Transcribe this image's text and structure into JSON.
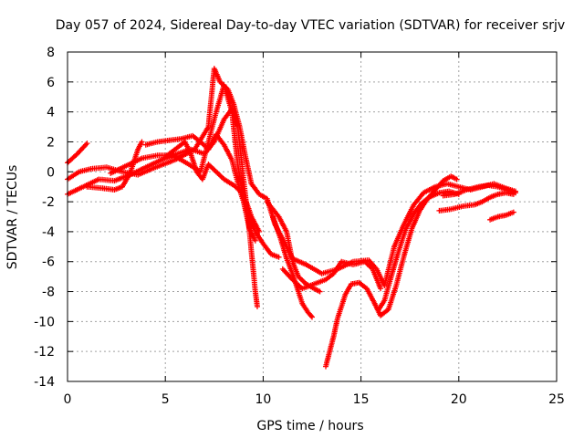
{
  "chart_data": {
    "type": "scatter",
    "title": "Day 057 of 2024, Sidereal Day-to-day VTEC variation (SDTVAR) for receiver srjv",
    "xlabel": "GPS time / hours",
    "ylabel": "SDTVAR / TECUs",
    "xlim": [
      0,
      25
    ],
    "ylim": [
      -14,
      8
    ],
    "xticks": [
      0,
      5,
      10,
      15,
      20,
      25
    ],
    "yticks": [
      -14,
      -12,
      -10,
      -8,
      -6,
      -4,
      -2,
      0,
      2,
      4,
      6,
      8
    ],
    "grid": true,
    "marker": "+",
    "color": "#ff0000",
    "series": [
      {
        "points": [
          [
            0.0,
            0.6
          ],
          [
            0.5,
            1.2
          ],
          [
            1.0,
            1.9
          ]
        ]
      },
      {
        "points": [
          [
            0.0,
            -1.5
          ],
          [
            0.8,
            -1.0
          ],
          [
            1.6,
            -0.5
          ],
          [
            2.4,
            -0.6
          ],
          [
            3.2,
            -0.2
          ],
          [
            4.0,
            0.3
          ],
          [
            4.8,
            0.8
          ],
          [
            5.6,
            1.2
          ],
          [
            6.3,
            1.5
          ],
          [
            7.0,
            1.2
          ],
          [
            7.5,
            2.0
          ],
          [
            8.0,
            3.5
          ],
          [
            8.4,
            4.2
          ],
          [
            8.7,
            3.0
          ],
          [
            9.0,
            -0.5
          ],
          [
            9.3,
            -4.0
          ],
          [
            9.6,
            -8.0
          ],
          [
            9.7,
            -9.0
          ]
        ]
      },
      {
        "points": [
          [
            0.0,
            -0.5
          ],
          [
            0.6,
            0.0
          ],
          [
            1.2,
            0.2
          ],
          [
            2.0,
            0.3
          ],
          [
            2.8,
            0.0
          ],
          [
            3.6,
            -0.2
          ],
          [
            4.5,
            0.3
          ],
          [
            5.5,
            0.8
          ],
          [
            6.5,
            1.5
          ],
          [
            7.2,
            3.0
          ],
          [
            7.5,
            6.9
          ],
          [
            7.8,
            6.0
          ],
          [
            8.2,
            5.5
          ],
          [
            8.5,
            4.5
          ],
          [
            8.8,
            3.0
          ],
          [
            9.1,
            1.0
          ],
          [
            9.4,
            -0.8
          ],
          [
            9.8,
            -1.5
          ],
          [
            10.2,
            -1.8
          ],
          [
            10.6,
            -3.5
          ],
          [
            11.0,
            -4.5
          ],
          [
            11.5,
            -5.8
          ],
          [
            12.2,
            -6.2
          ],
          [
            13.0,
            -6.8
          ],
          [
            13.8,
            -6.5
          ],
          [
            14.6,
            -6.0
          ],
          [
            15.4,
            -5.9
          ],
          [
            15.8,
            -6.5
          ],
          [
            16.2,
            -7.6
          ],
          [
            16.7,
            -5.0
          ],
          [
            17.2,
            -3.5
          ],
          [
            17.7,
            -2.2
          ],
          [
            18.2,
            -1.4
          ],
          [
            18.8,
            -1.0
          ],
          [
            19.4,
            -0.8
          ],
          [
            20.0,
            -1.0
          ],
          [
            20.6,
            -1.2
          ],
          [
            21.2,
            -1.0
          ],
          [
            21.8,
            -0.8
          ],
          [
            22.4,
            -1.1
          ],
          [
            22.9,
            -1.3
          ]
        ]
      },
      {
        "points": [
          [
            1.0,
            -1.0
          ],
          [
            1.8,
            -1.1
          ],
          [
            2.4,
            -1.2
          ],
          [
            2.8,
            -1.0
          ],
          [
            3.2,
            -0.1
          ],
          [
            3.6,
            1.5
          ],
          [
            3.8,
            2.0
          ]
        ]
      },
      {
        "points": [
          [
            2.2,
            -0.1
          ],
          [
            3.0,
            0.4
          ],
          [
            3.8,
            0.9
          ],
          [
            4.6,
            1.1
          ],
          [
            5.4,
            1.1
          ],
          [
            6.2,
            0.5
          ],
          [
            6.8,
            0.0
          ],
          [
            7.2,
            2.0
          ],
          [
            7.6,
            4.0
          ],
          [
            8.0,
            5.8
          ],
          [
            8.4,
            4.0
          ],
          [
            8.7,
            0.5
          ],
          [
            9.0,
            -2.0
          ],
          [
            9.3,
            -3.8
          ],
          [
            9.6,
            -4.6
          ]
        ]
      },
      {
        "points": [
          [
            4.0,
            1.8
          ],
          [
            4.6,
            2.0
          ],
          [
            5.2,
            2.1
          ],
          [
            5.8,
            2.2
          ],
          [
            6.4,
            2.4
          ],
          [
            6.8,
            2.0
          ],
          [
            7.2,
            1.5
          ],
          [
            7.6,
            2.5
          ],
          [
            8.0,
            1.8
          ],
          [
            8.4,
            0.8
          ],
          [
            8.8,
            -1.2
          ],
          [
            9.2,
            -2.8
          ],
          [
            9.6,
            -4.0
          ],
          [
            10.0,
            -4.8
          ],
          [
            10.4,
            -5.5
          ],
          [
            10.8,
            -5.7
          ]
        ]
      },
      {
        "points": [
          [
            5.0,
            1.0
          ],
          [
            5.5,
            1.5
          ],
          [
            6.0,
            2.0
          ],
          [
            6.3,
            1.2
          ],
          [
            6.6,
            0.0
          ],
          [
            6.9,
            -0.5
          ],
          [
            7.2,
            0.5
          ],
          [
            7.6,
            0.0
          ],
          [
            8.0,
            -0.5
          ],
          [
            8.5,
            -0.9
          ],
          [
            9.0,
            -1.5
          ],
          [
            9.4,
            -3.0
          ],
          [
            9.8,
            -4.0
          ]
        ]
      },
      {
        "points": [
          [
            10.5,
            -3.0
          ],
          [
            10.9,
            -4.5
          ],
          [
            11.2,
            -5.8
          ],
          [
            11.5,
            -6.8
          ],
          [
            11.8,
            -8.0
          ],
          [
            12.0,
            -8.8
          ],
          [
            12.3,
            -9.4
          ],
          [
            12.5,
            -9.7
          ]
        ]
      },
      {
        "points": [
          [
            10.2,
            -2.0
          ],
          [
            10.8,
            -3.0
          ],
          [
            11.2,
            -4.0
          ],
          [
            11.5,
            -6.0
          ],
          [
            11.8,
            -7.0
          ],
          [
            12.2,
            -7.5
          ],
          [
            12.6,
            -7.8
          ],
          [
            12.9,
            -8.0
          ]
        ]
      },
      {
        "points": [
          [
            11.0,
            -6.5
          ],
          [
            11.5,
            -7.2
          ],
          [
            12.0,
            -7.8
          ],
          [
            12.6,
            -7.5
          ],
          [
            13.2,
            -7.2
          ],
          [
            13.6,
            -6.8
          ],
          [
            14.0,
            -6.0
          ],
          [
            14.6,
            -6.2
          ],
          [
            15.2,
            -6.0
          ],
          [
            15.6,
            -6.5
          ],
          [
            16.0,
            -7.8
          ]
        ]
      },
      {
        "points": [
          [
            13.2,
            -13.0
          ],
          [
            13.4,
            -12.0
          ],
          [
            13.6,
            -11.0
          ],
          [
            13.8,
            -9.8
          ],
          [
            14.0,
            -9.0
          ],
          [
            14.2,
            -8.2
          ],
          [
            14.5,
            -7.5
          ],
          [
            14.9,
            -7.4
          ],
          [
            15.3,
            -7.8
          ],
          [
            15.7,
            -8.8
          ],
          [
            16.0,
            -9.6
          ],
          [
            16.4,
            -9.2
          ],
          [
            16.8,
            -7.6
          ],
          [
            17.2,
            -5.6
          ],
          [
            17.6,
            -3.8
          ],
          [
            18.0,
            -2.6
          ],
          [
            18.4,
            -1.8
          ],
          [
            18.8,
            -1.2
          ],
          [
            19.2,
            -0.6
          ],
          [
            19.6,
            -0.3
          ],
          [
            19.9,
            -0.5
          ]
        ]
      },
      {
        "points": [
          [
            15.9,
            -9.2
          ],
          [
            16.2,
            -8.6
          ],
          [
            16.5,
            -7.2
          ],
          [
            16.9,
            -5.4
          ],
          [
            17.3,
            -3.8
          ],
          [
            17.7,
            -2.8
          ],
          [
            18.1,
            -2.1
          ],
          [
            18.5,
            -1.7
          ],
          [
            19.0,
            -1.4
          ],
          [
            19.5,
            -1.3
          ],
          [
            20.0,
            -1.5
          ]
        ]
      },
      {
        "points": [
          [
            19.0,
            -2.6
          ],
          [
            19.6,
            -2.5
          ],
          [
            20.2,
            -2.3
          ],
          [
            20.8,
            -2.2
          ],
          [
            21.2,
            -2.0
          ],
          [
            21.6,
            -1.7
          ],
          [
            22.0,
            -1.5
          ],
          [
            22.4,
            -1.4
          ],
          [
            22.8,
            -1.5
          ]
        ]
      },
      {
        "points": [
          [
            19.2,
            -1.6
          ],
          [
            19.8,
            -1.5
          ],
          [
            20.4,
            -1.2
          ],
          [
            21.0,
            -1.0
          ],
          [
            21.5,
            -0.9
          ],
          [
            22.0,
            -1.0
          ],
          [
            22.5,
            -1.2
          ],
          [
            22.9,
            -1.4
          ]
        ]
      },
      {
        "points": [
          [
            21.6,
            -3.2
          ],
          [
            22.0,
            -3.0
          ],
          [
            22.4,
            -2.9
          ],
          [
            22.8,
            -2.7
          ]
        ]
      }
    ]
  }
}
